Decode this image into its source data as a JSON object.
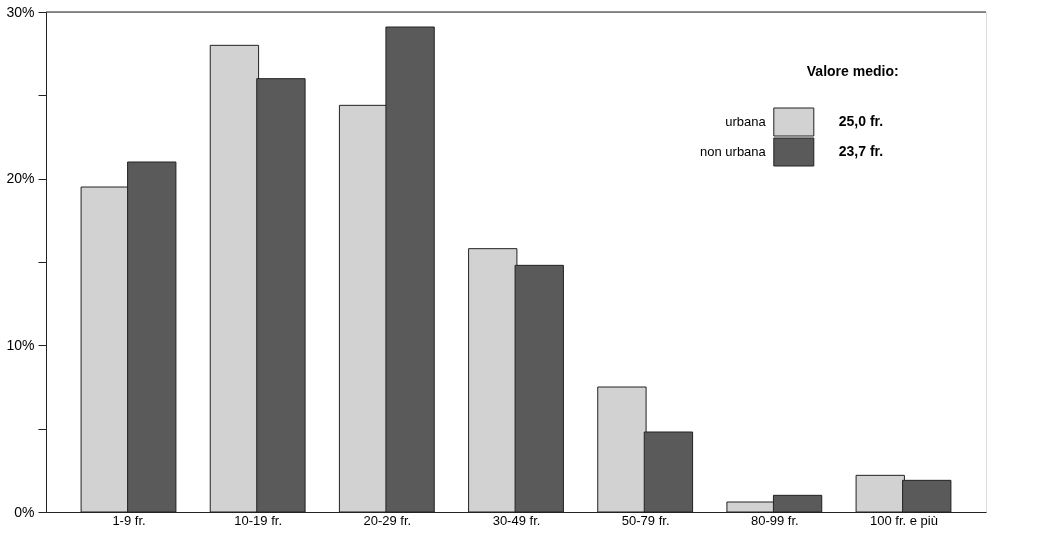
{
  "chart_data": {
    "type": "bar",
    "categories": [
      "1-9 fr.",
      "10-19 fr.",
      "20-29 fr.",
      "30-49 fr.",
      "50-79 fr.",
      "80-99 fr.",
      "100 fr. e più"
    ],
    "series": [
      {
        "name": "urbana",
        "color": "#d2d2d2",
        "values": [
          19.5,
          28.0,
          24.4,
          15.8,
          7.5,
          0.6,
          2.2
        ]
      },
      {
        "name": "non urbana",
        "color": "#5a5a5a",
        "values": [
          21.0,
          26.0,
          29.1,
          14.8,
          4.8,
          1.0,
          1.9
        ]
      }
    ],
    "legend_title": "Valore medio:",
    "annotations": [
      "25,0 fr.",
      "23,7 fr."
    ],
    "ylim": [
      0,
      30
    ],
    "yticks": [
      {
        "value": 0,
        "label": "0%"
      },
      {
        "value": 5,
        "label": null
      },
      {
        "value": 10,
        "label": "10%"
      },
      {
        "value": 15,
        "label": null
      },
      {
        "value": 20,
        "label": "20%"
      },
      {
        "value": 25,
        "label": null
      },
      {
        "value": 30,
        "label": "30%"
      }
    ],
    "grid": false,
    "legend": "top right"
  }
}
